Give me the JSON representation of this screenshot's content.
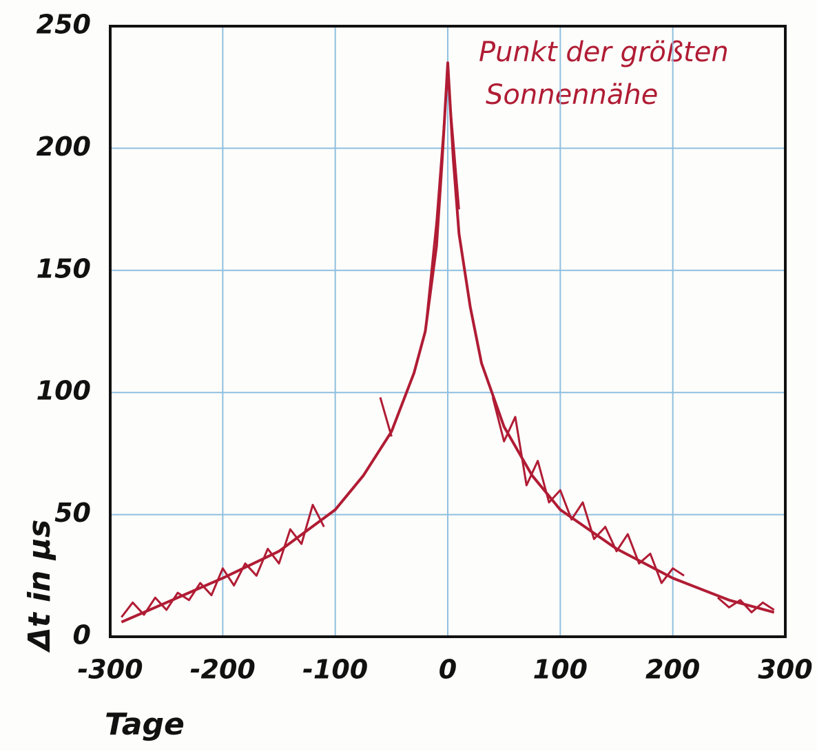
{
  "chart_data": {
    "type": "line",
    "xlabel": "Tage",
    "ylabel": "Δt in μs",
    "annotation": [
      "Punkt der größten",
      "Sonnennähe"
    ],
    "annotation_color": "#b01c34",
    "xlim": [
      -300,
      300
    ],
    "ylim": [
      0,
      250
    ],
    "xticks": [
      -300,
      -200,
      -100,
      0,
      100,
      200,
      300
    ],
    "yticks": [
      0,
      50,
      100,
      150,
      200,
      250
    ],
    "grid": true,
    "grid_color": "#8fbfe0",
    "series": [
      {
        "color": "#b01c34",
        "x": [
          -290,
          -250,
          -200,
          -150,
          -100,
          -75,
          -50,
          -30,
          -20,
          -10,
          -5,
          0,
          5,
          10,
          20,
          30,
          50,
          75,
          100,
          150,
          200,
          250,
          290
        ],
        "values": [
          6,
          14,
          24,
          35,
          52,
          66,
          84,
          108,
          125,
          160,
          195,
          235,
          195,
          165,
          135,
          112,
          86,
          66,
          52,
          36,
          24,
          15,
          10
        ]
      },
      {
        "color": "#b01c34",
        "x": [
          -290,
          -280,
          -270,
          -260,
          -250,
          -240,
          -230,
          -220,
          -210,
          -200,
          -190,
          -180,
          -170,
          -160,
          -150,
          -140,
          -130,
          -120,
          -110,
          -80,
          -60,
          -50,
          -35,
          -20,
          -10,
          0,
          10,
          25,
          40,
          50,
          60,
          70,
          80,
          90,
          100,
          110,
          120,
          130,
          140,
          150,
          160,
          170,
          180,
          190,
          200,
          210,
          225,
          240,
          250,
          260,
          270,
          280,
          290
        ],
        "values": [
          8,
          14,
          9,
          16,
          11,
          18,
          15,
          22,
          17,
          28,
          21,
          30,
          25,
          36,
          30,
          44,
          38,
          54,
          45,
          null,
          98,
          82,
          null,
          125,
          170,
          230,
          175,
          null,
          98,
          80,
          90,
          62,
          72,
          55,
          60,
          48,
          55,
          40,
          45,
          35,
          42,
          30,
          34,
          22,
          28,
          25,
          null,
          16,
          12,
          15,
          10,
          14,
          11
        ]
      }
    ]
  }
}
